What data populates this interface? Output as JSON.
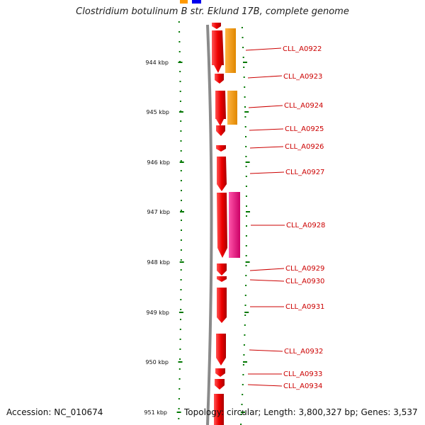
{
  "title": "Clostridium botulinum B str. Eklund 17B, complete genome",
  "footer": {
    "accession": "Accession: NC_010674",
    "topology": "Topology: circular; Length: 3,800,327 bp; Genes: 3,537"
  },
  "scale": {
    "unit": "kbp",
    "ticks": [
      "944 kbp",
      "945 kbp",
      "946 kbp",
      "947 kbp",
      "948 kbp",
      "949 kbp",
      "950 kbp",
      "951 kbp"
    ]
  },
  "colors": {
    "cds": "#ee0000",
    "orange_feature": "#ff9900",
    "magenta_feature": "#ee1188",
    "blue_feature": "#0000ee",
    "backbone": "#888888",
    "tick": "#007700",
    "label": "#cc0000"
  },
  "genes": [
    {
      "name": "CLL_A0922"
    },
    {
      "name": "CLL_A0923"
    },
    {
      "name": "CLL_A0924"
    },
    {
      "name": "CLL_A0925"
    },
    {
      "name": "CLL_A0926"
    },
    {
      "name": "CLL_A0927"
    },
    {
      "name": "CLL_A0928"
    },
    {
      "name": "CLL_A0929"
    },
    {
      "name": "CLL_A0930"
    },
    {
      "name": "CLL_A0931"
    },
    {
      "name": "CLL_A0932"
    },
    {
      "name": "CLL_A0933"
    },
    {
      "name": "CLL_A0934"
    }
  ]
}
